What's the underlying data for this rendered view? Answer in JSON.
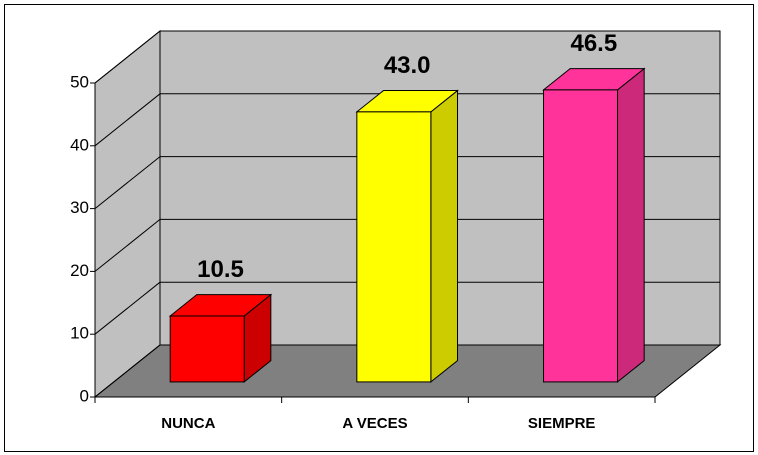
{
  "chart_data": {
    "type": "bar3d",
    "categories": [
      "NUNCA",
      "A VECES",
      "SIEMPRE"
    ],
    "values": [
      10.5,
      43.0,
      46.5
    ],
    "value_labels": [
      "10.5",
      "43.0",
      "46.5"
    ],
    "colors": [
      "#ff0000",
      "#ffff00",
      "#ff3399"
    ],
    "ylim": [
      0,
      50
    ],
    "yticks": [
      0,
      10,
      20,
      30,
      40,
      50
    ],
    "grid": true
  }
}
